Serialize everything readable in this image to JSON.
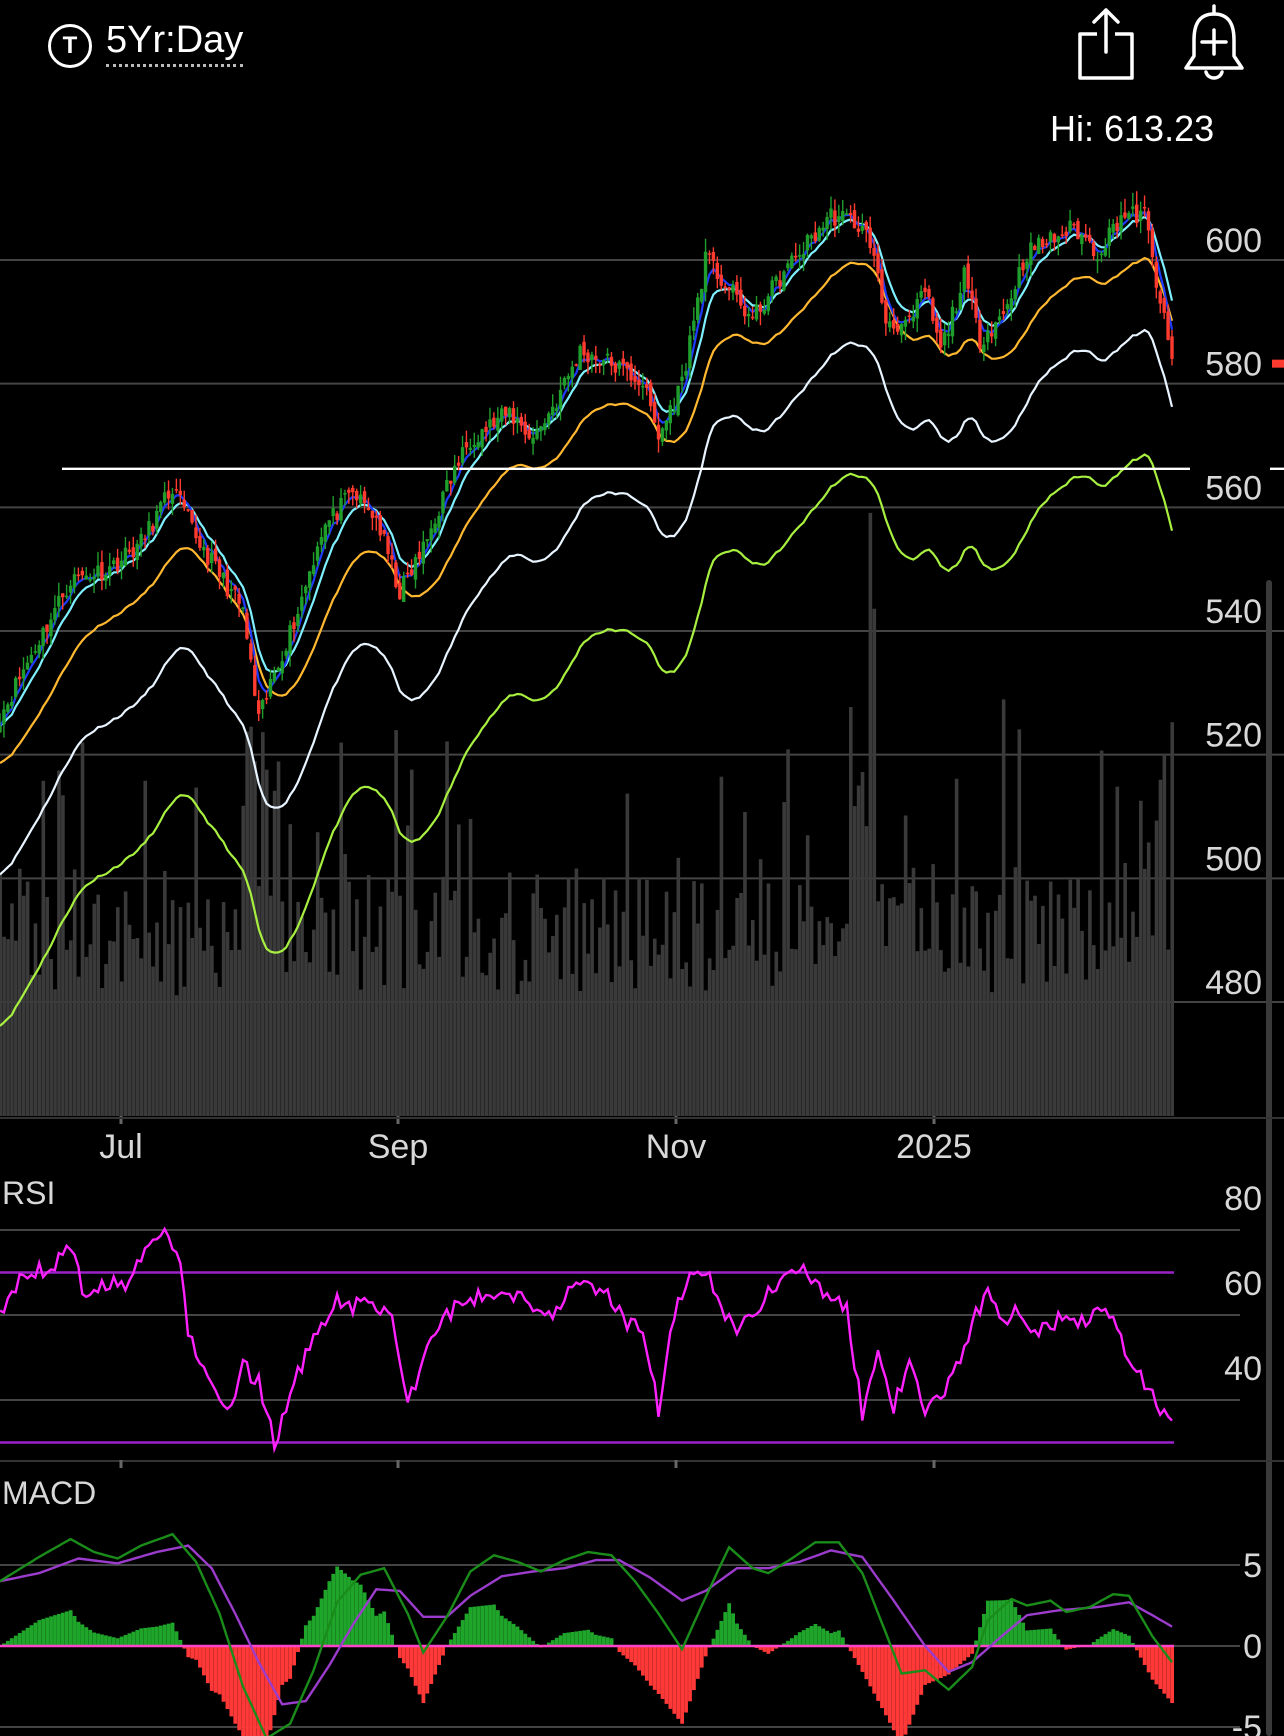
{
  "header": {
    "ticker_icon_letter": "T",
    "range_label": "5Yr:Day",
    "share_icon": "share-icon",
    "alert_icon": "bell-plus-icon",
    "hi_label": "Hi: 613.23"
  },
  "colors": {
    "background": "#000000",
    "up": "#1f9e2c",
    "down": "#ff3b30",
    "ema_fast": "#1e3cff",
    "ema_mid": "#7ff0ff",
    "sma50": "#ffb830",
    "sma100": "#e8f4ff",
    "sma200": "#a8f040",
    "support": "#ffffff",
    "rsi": "#ff22ff",
    "rsi_bands": "#9a22c8",
    "macd": "#1a8c1a",
    "signal": "#9b3ccc",
    "hist_pos": "#1fa52a",
    "hist_neg": "#ff3838",
    "volume": "#3a3a3a",
    "grid": "#444444"
  },
  "chart_data": [
    {
      "type": "candlestick",
      "name": "price",
      "x_ticks": [
        "Jul",
        "Sep",
        "Nov",
        "2025"
      ],
      "y_ticks": [
        480,
        500,
        520,
        540,
        560,
        580,
        600
      ],
      "ylim": [
        462,
        616
      ],
      "high_label": "Hi: 613.23",
      "last_price": 580,
      "support_level": 563,
      "close_anchors": [
        [
          0,
          523
        ],
        [
          8,
          533
        ],
        [
          18,
          545
        ],
        [
          28,
          547
        ],
        [
          36,
          551
        ],
        [
          44,
          560
        ],
        [
          50,
          552
        ],
        [
          56,
          546
        ],
        [
          62,
          540
        ],
        [
          66,
          522
        ],
        [
          70,
          530
        ],
        [
          76,
          540
        ],
        [
          82,
          553
        ],
        [
          90,
          559
        ],
        [
          96,
          555
        ],
        [
          102,
          543
        ],
        [
          108,
          550
        ],
        [
          114,
          560
        ],
        [
          120,
          568
        ],
        [
          130,
          572
        ],
        [
          136,
          568
        ],
        [
          142,
          574
        ],
        [
          148,
          582
        ],
        [
          156,
          580
        ],
        [
          164,
          577
        ],
        [
          168,
          568
        ],
        [
          174,
          577
        ],
        [
          180,
          597
        ],
        [
          186,
          592
        ],
        [
          192,
          587
        ],
        [
          198,
          593
        ],
        [
          204,
          598
        ],
        [
          212,
          604
        ],
        [
          218,
          603
        ],
        [
          222,
          600
        ],
        [
          226,
          587
        ],
        [
          232,
          586
        ],
        [
          236,
          592
        ],
        [
          240,
          582
        ],
        [
          246,
          594
        ],
        [
          250,
          584
        ],
        [
          256,
          588
        ],
        [
          262,
          598
        ],
        [
          268,
          600
        ],
        [
          274,
          602
        ],
        [
          280,
          598
        ],
        [
          286,
          604
        ],
        [
          292,
          604
        ],
        [
          296,
          590
        ],
        [
          299,
          580
        ]
      ],
      "volume_relative": "gray bars, tallest at late December and early August"
    },
    {
      "type": "line",
      "name": "RSI",
      "label": "RSI",
      "y_ticks": [
        40,
        60,
        80
      ],
      "ylim": [
        17,
        86
      ],
      "bands": [
        30,
        70
      ],
      "anchors": [
        [
          0,
          61
        ],
        [
          6,
          69
        ],
        [
          12,
          71
        ],
        [
          18,
          75
        ],
        [
          22,
          64
        ],
        [
          28,
          68
        ],
        [
          32,
          66
        ],
        [
          38,
          76
        ],
        [
          42,
          79
        ],
        [
          46,
          74
        ],
        [
          48,
          55
        ],
        [
          54,
          45
        ],
        [
          58,
          36
        ],
        [
          62,
          48
        ],
        [
          66,
          44
        ],
        [
          70,
          30
        ],
        [
          76,
          46
        ],
        [
          82,
          58
        ],
        [
          86,
          64
        ],
        [
          90,
          62
        ],
        [
          96,
          63
        ],
        [
          100,
          58
        ],
        [
          104,
          39
        ],
        [
          110,
          55
        ],
        [
          116,
          62
        ],
        [
          122,
          64
        ],
        [
          128,
          66
        ],
        [
          134,
          64
        ],
        [
          140,
          60
        ],
        [
          146,
          66
        ],
        [
          150,
          67
        ],
        [
          156,
          64
        ],
        [
          160,
          58
        ],
        [
          164,
          57
        ],
        [
          168,
          38
        ],
        [
          172,
          60
        ],
        [
          176,
          68
        ],
        [
          180,
          70
        ],
        [
          184,
          62
        ],
        [
          188,
          56
        ],
        [
          192,
          60
        ],
        [
          196,
          66
        ],
        [
          200,
          68
        ],
        [
          204,
          72
        ],
        [
          208,
          68
        ],
        [
          212,
          64
        ],
        [
          216,
          61
        ],
        [
          220,
          37
        ],
        [
          224,
          50
        ],
        [
          228,
          38
        ],
        [
          232,
          50
        ],
        [
          236,
          37
        ],
        [
          240,
          40
        ],
        [
          244,
          48
        ],
        [
          248,
          58
        ],
        [
          252,
          66
        ],
        [
          256,
          59
        ],
        [
          260,
          62
        ],
        [
          264,
          56
        ],
        [
          268,
          58
        ],
        [
          272,
          60
        ],
        [
          276,
          58
        ],
        [
          280,
          62
        ],
        [
          284,
          61
        ],
        [
          288,
          48
        ],
        [
          292,
          44
        ],
        [
          296,
          38
        ],
        [
          299,
          34
        ]
      ]
    },
    {
      "type": "line",
      "name": "MACD",
      "label": "MACD",
      "y_ticks": [
        -5,
        0,
        5
      ],
      "ylim": [
        -6.5,
        7
      ],
      "series": [
        {
          "anchors": [
            [
              0,
              4
            ],
            [
              10,
              5.5
            ],
            [
              18,
              6.6
            ],
            [
              24,
              5.8
            ],
            [
              30,
              5.4
            ],
            [
              36,
              6.2
            ],
            [
              44,
              6.9
            ],
            [
              50,
              5.2
            ],
            [
              56,
              2
            ],
            [
              62,
              -2.5
            ],
            [
              68,
              -5.7
            ],
            [
              74,
              -4.8
            ],
            [
              80,
              -1.5
            ],
            [
              86,
              2.7
            ],
            [
              92,
              4.4
            ],
            [
              98,
              4.8
            ],
            [
              104,
              2
            ],
            [
              108,
              -0.4
            ],
            [
              114,
              1.8
            ],
            [
              120,
              4.6
            ],
            [
              126,
              5.6
            ],
            [
              132,
              5.2
            ],
            [
              138,
              4.6
            ],
            [
              144,
              5.3
            ],
            [
              150,
              5.8
            ],
            [
              156,
              5.6
            ],
            [
              162,
              4
            ],
            [
              168,
              2
            ],
            [
              174,
              -0.2
            ],
            [
              180,
              3
            ],
            [
              186,
              6.1
            ],
            [
              192,
              4.8
            ],
            [
              196,
              4.5
            ],
            [
              202,
              5.4
            ],
            [
              208,
              6.4
            ],
            [
              214,
              6.4
            ],
            [
              220,
              4.5
            ],
            [
              226,
              0.8
            ],
            [
              230,
              -1.7
            ],
            [
              236,
              -1.5
            ],
            [
              242,
              -2.7
            ],
            [
              248,
              -1.3
            ],
            [
              252,
              1.6
            ],
            [
              258,
              2.9
            ],
            [
              262,
              2.5
            ],
            [
              268,
              2.8
            ],
            [
              272,
              2.1
            ],
            [
              278,
              2.4
            ],
            [
              284,
              3.2
            ],
            [
              288,
              3.1
            ],
            [
              294,
              0.6
            ],
            [
              299,
              -1
            ]
          ]
        },
        {
          "anchors": [
            [
              0,
              4
            ],
            [
              10,
              4.5
            ],
            [
              20,
              5.4
            ],
            [
              30,
              5.1
            ],
            [
              40,
              5.8
            ],
            [
              48,
              6.2
            ],
            [
              54,
              4.8
            ],
            [
              60,
              2
            ],
            [
              66,
              -1
            ],
            [
              72,
              -3.6
            ],
            [
              78,
              -3.4
            ],
            [
              84,
              -1.2
            ],
            [
              90,
              1.3
            ],
            [
              96,
              3.5
            ],
            [
              102,
              3.4
            ],
            [
              108,
              1.8
            ],
            [
              114,
              1.8
            ],
            [
              120,
              3.1
            ],
            [
              128,
              4.3
            ],
            [
              136,
              4.6
            ],
            [
              144,
              4.8
            ],
            [
              152,
              5.3
            ],
            [
              158,
              5.3
            ],
            [
              166,
              4.2
            ],
            [
              174,
              2.8
            ],
            [
              180,
              3.4
            ],
            [
              188,
              4.8
            ],
            [
              196,
              4.8
            ],
            [
              204,
              5.2
            ],
            [
              212,
              5.9
            ],
            [
              220,
              5.5
            ],
            [
              228,
              2.8
            ],
            [
              236,
              0
            ],
            [
              242,
              -1.6
            ],
            [
              248,
              -1
            ],
            [
              256,
              0.7
            ],
            [
              262,
              1.9
            ],
            [
              270,
              2.2
            ],
            [
              280,
              2.4
            ],
            [
              288,
              2.7
            ],
            [
              294,
              1.9
            ],
            [
              299,
              1.2
            ]
          ]
        }
      ],
      "histogram": "bars = macd - signal"
    }
  ]
}
